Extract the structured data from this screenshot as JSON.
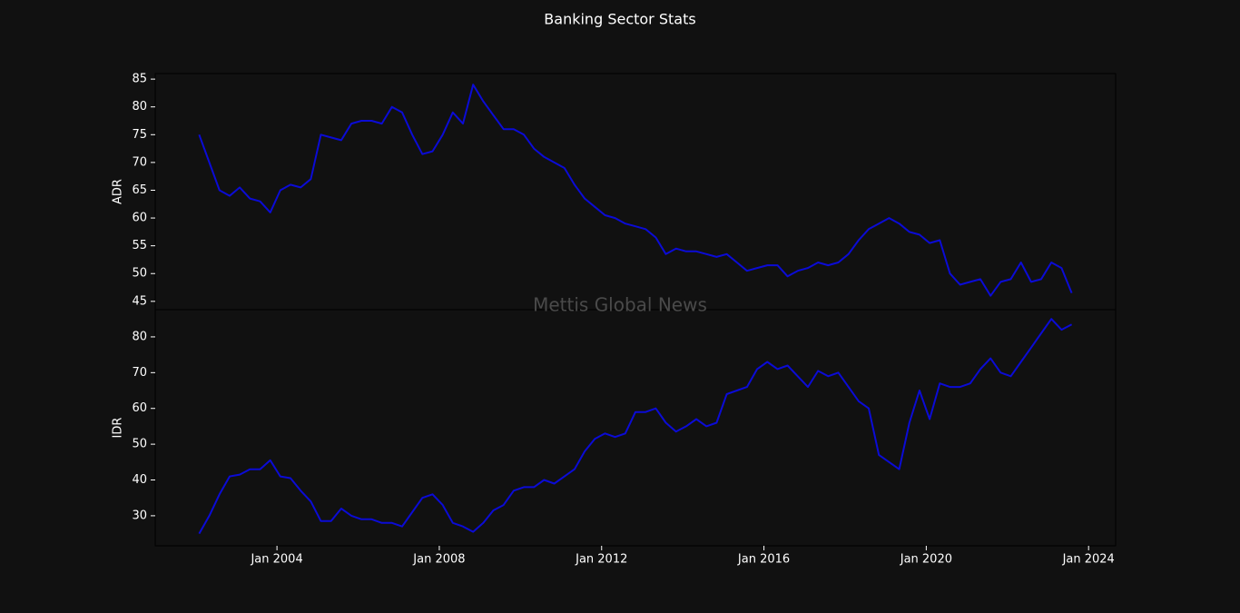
{
  "chart_data": {
    "type": "line",
    "title": "Banking Sector Stats",
    "watermark": "Mettis Global News",
    "x": [
      "2002-02",
      "2002-05",
      "2002-08",
      "2002-11",
      "2003-02",
      "2003-05",
      "2003-08",
      "2003-11",
      "2004-02",
      "2004-05",
      "2004-08",
      "2004-11",
      "2005-02",
      "2005-05",
      "2005-08",
      "2005-11",
      "2006-02",
      "2006-05",
      "2006-08",
      "2006-11",
      "2007-02",
      "2007-05",
      "2007-08",
      "2007-11",
      "2008-02",
      "2008-05",
      "2008-08",
      "2008-11",
      "2009-02",
      "2009-05",
      "2009-08",
      "2009-11",
      "2010-02",
      "2010-05",
      "2010-08",
      "2010-11",
      "2011-02",
      "2011-05",
      "2011-08",
      "2011-11",
      "2012-02",
      "2012-05",
      "2012-08",
      "2012-11",
      "2013-02",
      "2013-05",
      "2013-08",
      "2013-11",
      "2014-02",
      "2014-05",
      "2014-08",
      "2014-11",
      "2015-02",
      "2015-05",
      "2015-08",
      "2015-11",
      "2016-02",
      "2016-05",
      "2016-08",
      "2016-11",
      "2017-02",
      "2017-05",
      "2017-08",
      "2017-11",
      "2018-02",
      "2018-05",
      "2018-08",
      "2018-11",
      "2019-02",
      "2019-05",
      "2019-08",
      "2019-11",
      "2020-02",
      "2020-05",
      "2020-08",
      "2020-11",
      "2021-02",
      "2021-05",
      "2021-08",
      "2021-11",
      "2022-02",
      "2022-05",
      "2022-08",
      "2022-11",
      "2023-02",
      "2023-05",
      "2023-08"
    ],
    "xlim": [
      "2001-01",
      "2024-09"
    ],
    "xticks": [
      {
        "value": "2004-01",
        "label": "Jan 2004"
      },
      {
        "value": "2008-01",
        "label": "Jan 2008"
      },
      {
        "value": "2012-01",
        "label": "Jan 2012"
      },
      {
        "value": "2016-01",
        "label": "Jan 2016"
      },
      {
        "value": "2020-01",
        "label": "Jan 2020"
      },
      {
        "value": "2024-01",
        "label": "Jan 2024"
      }
    ],
    "panels": [
      {
        "ylabel": "ADR",
        "color": "#0b0bd6",
        "ylim": [
          43.5,
          86
        ],
        "yticks": [
          45,
          50,
          55,
          60,
          65,
          70,
          75,
          80,
          85
        ],
        "values": [
          75,
          70,
          65,
          64,
          65.5,
          63.5,
          63,
          61,
          65,
          66,
          65.5,
          67,
          75,
          74.5,
          74,
          77,
          77.5,
          77.5,
          77,
          80,
          79,
          75,
          71.5,
          72,
          75,
          79,
          77,
          84,
          81,
          78.5,
          76,
          76,
          75,
          72.5,
          71,
          70,
          69,
          66,
          63.5,
          62,
          60.5,
          60,
          59,
          58.5,
          58,
          56.5,
          53.5,
          54.5,
          54,
          54,
          53.5,
          53,
          53.5,
          52,
          50.5,
          51,
          51.5,
          51.5,
          49.5,
          50.5,
          51,
          52,
          51.5,
          52,
          53.5,
          56,
          58,
          59,
          60,
          59,
          57.5,
          57,
          55.5,
          56,
          50,
          48,
          48.5,
          49,
          46,
          48.5,
          49,
          52,
          48.5,
          49,
          52,
          51,
          46.5
        ]
      },
      {
        "ylabel": "IDR",
        "color": "#0b0bd6",
        "ylim": [
          21.6,
          87.6
        ],
        "yticks": [
          30,
          40,
          50,
          60,
          70,
          80
        ],
        "values": [
          25,
          30,
          36,
          41,
          41.5,
          43,
          43,
          45.5,
          41,
          40.5,
          37,
          34,
          28.5,
          28.5,
          32,
          30,
          29,
          29,
          28,
          28,
          27,
          31,
          35,
          36,
          33,
          28,
          27,
          25.5,
          28,
          31.5,
          33,
          37,
          38,
          38,
          40,
          39,
          41,
          43,
          48,
          51.5,
          53,
          52,
          53,
          59,
          59,
          60,
          56,
          53.5,
          55,
          57,
          55,
          56,
          64,
          65,
          66,
          71,
          73,
          71,
          72,
          69,
          66,
          70.5,
          69,
          70,
          66,
          62,
          60,
          47,
          45,
          43,
          56,
          65,
          57,
          67,
          66,
          66,
          67,
          71,
          74,
          70,
          69,
          73,
          77,
          81,
          85,
          82,
          83.5
        ]
      }
    ]
  }
}
